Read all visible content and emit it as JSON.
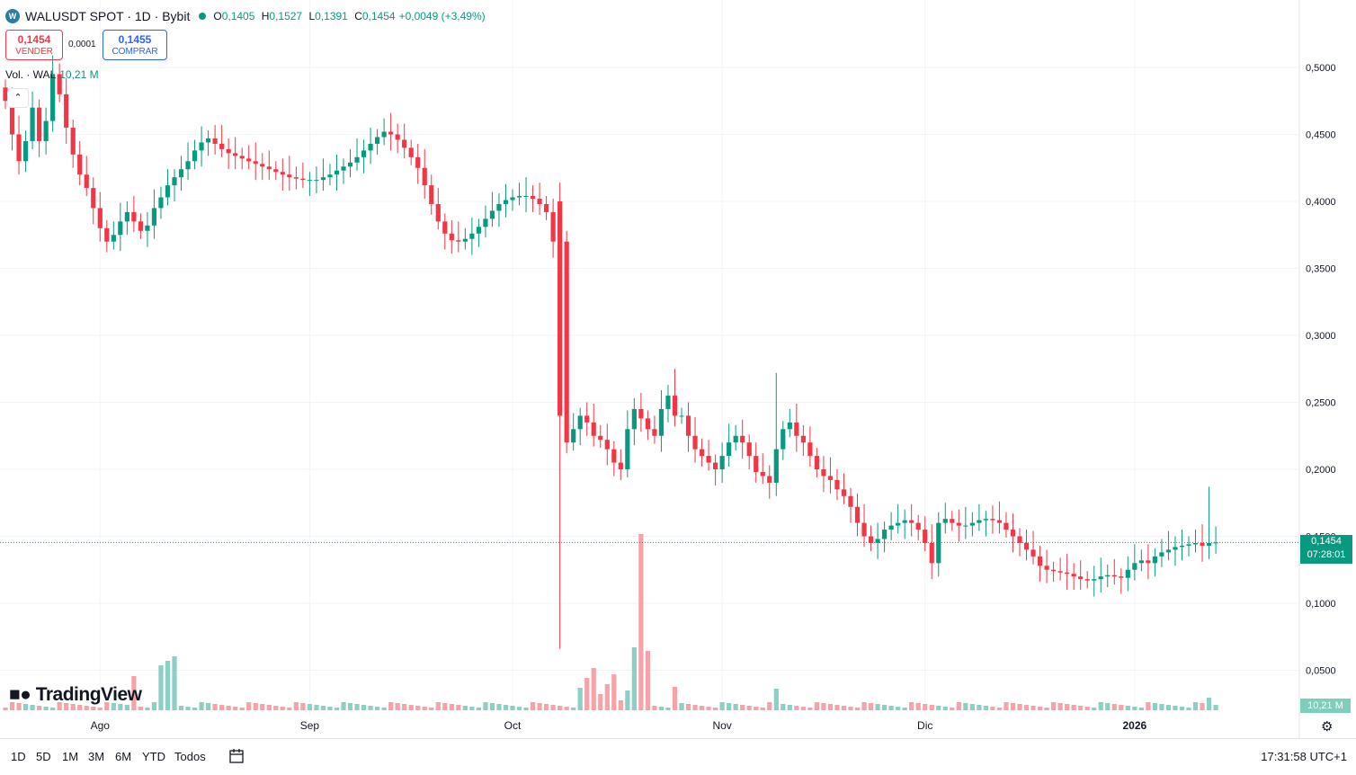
{
  "header": {
    "symbol": "WALUSDT SPOT · 1D · Bybit",
    "logo_letter": "W",
    "open_label": "O",
    "open": "0,1405",
    "high_label": "H",
    "high": "0,1527",
    "low_label": "L",
    "low": "0,1391",
    "close_label": "C",
    "close": "0,1454",
    "change": "+0,0049 (+3,49%)"
  },
  "trade": {
    "sell_price": "0,1454",
    "sell_label": "VENDER",
    "spread": "0,0001",
    "buy_price": "0,1455",
    "buy_label": "COMPRAR"
  },
  "volume_legend": {
    "label": "Vol. · WAL",
    "value": "10,21 M"
  },
  "collapse_icon": "chevron-up-icon",
  "brand": "TradingView",
  "price_tag": {
    "price": "0,1454",
    "countdown": "07:28:01"
  },
  "volume_tag": "10,21 M",
  "bottom_bar": {
    "ranges": [
      "1D",
      "5D",
      "1M",
      "3M",
      "6M",
      "YTD",
      "Todos"
    ],
    "clock": "17:31:58 UTC+1"
  },
  "colors": {
    "up": "#089981",
    "down": "#f23645",
    "up_vol": "#8ccfc4",
    "down_vol": "#f5a3a8"
  },
  "chart_data": {
    "type": "candlestick",
    "y_tick_labels": [
      "0,5000",
      "0,4500",
      "0,4000",
      "0,3500",
      "0,3000",
      "0,2500",
      "0,2000",
      "0,1500",
      "0,1000",
      "0,0500"
    ],
    "y_ticks": [
      0.5,
      0.45,
      0.4,
      0.35,
      0.3,
      0.25,
      0.2,
      0.15,
      0.1,
      0.05
    ],
    "ylim": [
      0.0,
      0.55
    ],
    "x_labels": [
      {
        "label": "Ago",
        "index": 14
      },
      {
        "label": "Sep",
        "index": 45
      },
      {
        "label": "Oct",
        "index": 75
      },
      {
        "label": "Nov",
        "index": 106
      },
      {
        "label": "Dic",
        "index": 136
      },
      {
        "label": "2026",
        "index": 167
      }
    ],
    "grid": true,
    "last_price": 0.1454,
    "close": [
      0.475,
      0.45,
      0.43,
      0.445,
      0.47,
      0.445,
      0.46,
      0.495,
      0.48,
      0.455,
      0.435,
      0.42,
      0.41,
      0.395,
      0.38,
      0.37,
      0.375,
      0.385,
      0.392,
      0.385,
      0.378,
      0.382,
      0.395,
      0.403,
      0.412,
      0.418,
      0.424,
      0.43,
      0.438,
      0.444,
      0.447,
      0.443,
      0.439,
      0.436,
      0.434,
      0.432,
      0.43,
      0.428,
      0.426,
      0.424,
      0.422,
      0.42,
      0.418,
      0.417,
      0.416,
      0.416,
      0.416,
      0.418,
      0.42,
      0.423,
      0.426,
      0.429,
      0.433,
      0.438,
      0.443,
      0.448,
      0.452,
      0.45,
      0.446,
      0.44,
      0.433,
      0.425,
      0.412,
      0.398,
      0.385,
      0.376,
      0.371,
      0.37,
      0.372,
      0.376,
      0.381,
      0.387,
      0.393,
      0.398,
      0.401,
      0.403,
      0.404,
      0.404,
      0.402,
      0.398,
      0.392,
      0.37,
      0.24,
      0.22,
      0.23,
      0.24,
      0.235,
      0.225,
      0.222,
      0.215,
      0.205,
      0.2,
      0.23,
      0.245,
      0.238,
      0.23,
      0.225,
      0.245,
      0.255,
      0.24,
      0.24,
      0.225,
      0.215,
      0.21,
      0.205,
      0.2,
      0.21,
      0.22,
      0.225,
      0.22,
      0.21,
      0.198,
      0.195,
      0.19,
      0.215,
      0.23,
      0.235,
      0.225,
      0.22,
      0.21,
      0.2,
      0.195,
      0.192,
      0.185,
      0.18,
      0.172,
      0.16,
      0.15,
      0.145,
      0.148,
      0.155,
      0.158,
      0.16,
      0.162,
      0.16,
      0.155,
      0.145,
      0.13,
      0.16,
      0.163,
      0.16,
      0.158,
      0.158,
      0.16,
      0.162,
      0.163,
      0.162,
      0.16,
      0.155,
      0.15,
      0.145,
      0.14,
      0.135,
      0.128,
      0.125,
      0.124,
      0.123,
      0.122,
      0.12,
      0.118,
      0.117,
      0.118,
      0.12,
      0.121,
      0.12,
      0.119,
      0.125,
      0.13,
      0.132,
      0.13,
      0.135,
      0.138,
      0.14,
      0.142,
      0.143,
      0.144,
      0.145,
      0.143,
      0.145,
      0.1454
    ]
  }
}
